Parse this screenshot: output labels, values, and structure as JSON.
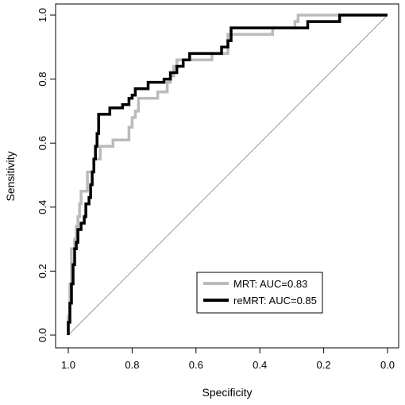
{
  "chart_data": {
    "type": "line",
    "title": "",
    "xlabel": "Specificity",
    "ylabel": "Sensitivity",
    "x_reversed": true,
    "xlim": [
      1.0,
      0.0
    ],
    "ylim": [
      0.0,
      1.0
    ],
    "x_ticks": [
      "1.0",
      "0.8",
      "0.6",
      "0.4",
      "0.2",
      "0.0"
    ],
    "y_ticks": [
      "0.0",
      "0.2",
      "0.4",
      "0.6",
      "0.8",
      "1.0"
    ],
    "grid": false,
    "legend_position": "bottom-right",
    "reference_line": {
      "from": [
        1.0,
        0.0
      ],
      "to": [
        0.0,
        1.0
      ],
      "color": "#999999"
    },
    "series": [
      {
        "name": "MRT: AUC=0.83",
        "color": "#bbbbbb",
        "points": [
          [
            1.0,
            0.0
          ],
          [
            1.0,
            0.06
          ],
          [
            0.995,
            0.06
          ],
          [
            0.995,
            0.16
          ],
          [
            0.99,
            0.16
          ],
          [
            0.99,
            0.27
          ],
          [
            0.98,
            0.27
          ],
          [
            0.98,
            0.3
          ],
          [
            0.975,
            0.3
          ],
          [
            0.975,
            0.34
          ],
          [
            0.97,
            0.34
          ],
          [
            0.97,
            0.37
          ],
          [
            0.965,
            0.37
          ],
          [
            0.965,
            0.41
          ],
          [
            0.96,
            0.41
          ],
          [
            0.96,
            0.45
          ],
          [
            0.94,
            0.45
          ],
          [
            0.94,
            0.51
          ],
          [
            0.92,
            0.51
          ],
          [
            0.92,
            0.55
          ],
          [
            0.9,
            0.55
          ],
          [
            0.9,
            0.59
          ],
          [
            0.86,
            0.59
          ],
          [
            0.86,
            0.61
          ],
          [
            0.81,
            0.61
          ],
          [
            0.81,
            0.65
          ],
          [
            0.8,
            0.65
          ],
          [
            0.8,
            0.68
          ],
          [
            0.79,
            0.68
          ],
          [
            0.79,
            0.7
          ],
          [
            0.78,
            0.7
          ],
          [
            0.78,
            0.74
          ],
          [
            0.72,
            0.74
          ],
          [
            0.72,
            0.76
          ],
          [
            0.69,
            0.76
          ],
          [
            0.69,
            0.79
          ],
          [
            0.68,
            0.79
          ],
          [
            0.68,
            0.81
          ],
          [
            0.67,
            0.81
          ],
          [
            0.67,
            0.84
          ],
          [
            0.66,
            0.84
          ],
          [
            0.66,
            0.86
          ],
          [
            0.55,
            0.86
          ],
          [
            0.55,
            0.88
          ],
          [
            0.5,
            0.88
          ],
          [
            0.5,
            0.94
          ],
          [
            0.36,
            0.94
          ],
          [
            0.36,
            0.96
          ],
          [
            0.29,
            0.96
          ],
          [
            0.29,
            0.98
          ],
          [
            0.28,
            0.98
          ],
          [
            0.28,
            1.0
          ],
          [
            0.0,
            1.0
          ]
        ]
      },
      {
        "name": "reMRT: AUC=0.85",
        "color": "#000000",
        "points": [
          [
            1.0,
            0.0
          ],
          [
            1.0,
            0.04
          ],
          [
            0.995,
            0.04
          ],
          [
            0.995,
            0.1
          ],
          [
            0.99,
            0.1
          ],
          [
            0.99,
            0.16
          ],
          [
            0.985,
            0.16
          ],
          [
            0.985,
            0.22
          ],
          [
            0.98,
            0.22
          ],
          [
            0.98,
            0.27
          ],
          [
            0.975,
            0.27
          ],
          [
            0.975,
            0.29
          ],
          [
            0.97,
            0.29
          ],
          [
            0.97,
            0.33
          ],
          [
            0.96,
            0.33
          ],
          [
            0.96,
            0.35
          ],
          [
            0.95,
            0.35
          ],
          [
            0.95,
            0.37
          ],
          [
            0.945,
            0.37
          ],
          [
            0.945,
            0.41
          ],
          [
            0.935,
            0.41
          ],
          [
            0.935,
            0.43
          ],
          [
            0.93,
            0.43
          ],
          [
            0.93,
            0.47
          ],
          [
            0.925,
            0.47
          ],
          [
            0.925,
            0.51
          ],
          [
            0.92,
            0.51
          ],
          [
            0.92,
            0.55
          ],
          [
            0.915,
            0.55
          ],
          [
            0.915,
            0.59
          ],
          [
            0.91,
            0.59
          ],
          [
            0.91,
            0.63
          ],
          [
            0.905,
            0.63
          ],
          [
            0.905,
            0.69
          ],
          [
            0.87,
            0.69
          ],
          [
            0.87,
            0.71
          ],
          [
            0.83,
            0.71
          ],
          [
            0.83,
            0.72
          ],
          [
            0.81,
            0.72
          ],
          [
            0.81,
            0.74
          ],
          [
            0.8,
            0.74
          ],
          [
            0.8,
            0.75
          ],
          [
            0.79,
            0.75
          ],
          [
            0.79,
            0.77
          ],
          [
            0.75,
            0.77
          ],
          [
            0.75,
            0.79
          ],
          [
            0.7,
            0.79
          ],
          [
            0.7,
            0.8
          ],
          [
            0.68,
            0.8
          ],
          [
            0.68,
            0.82
          ],
          [
            0.66,
            0.82
          ],
          [
            0.66,
            0.84
          ],
          [
            0.64,
            0.84
          ],
          [
            0.64,
            0.86
          ],
          [
            0.62,
            0.86
          ],
          [
            0.62,
            0.88
          ],
          [
            0.52,
            0.88
          ],
          [
            0.52,
            0.9
          ],
          [
            0.5,
            0.9
          ],
          [
            0.5,
            0.92
          ],
          [
            0.49,
            0.92
          ],
          [
            0.49,
            0.96
          ],
          [
            0.25,
            0.96
          ],
          [
            0.25,
            0.98
          ],
          [
            0.15,
            0.98
          ],
          [
            0.15,
            1.0
          ],
          [
            0.0,
            1.0
          ]
        ]
      }
    ]
  }
}
